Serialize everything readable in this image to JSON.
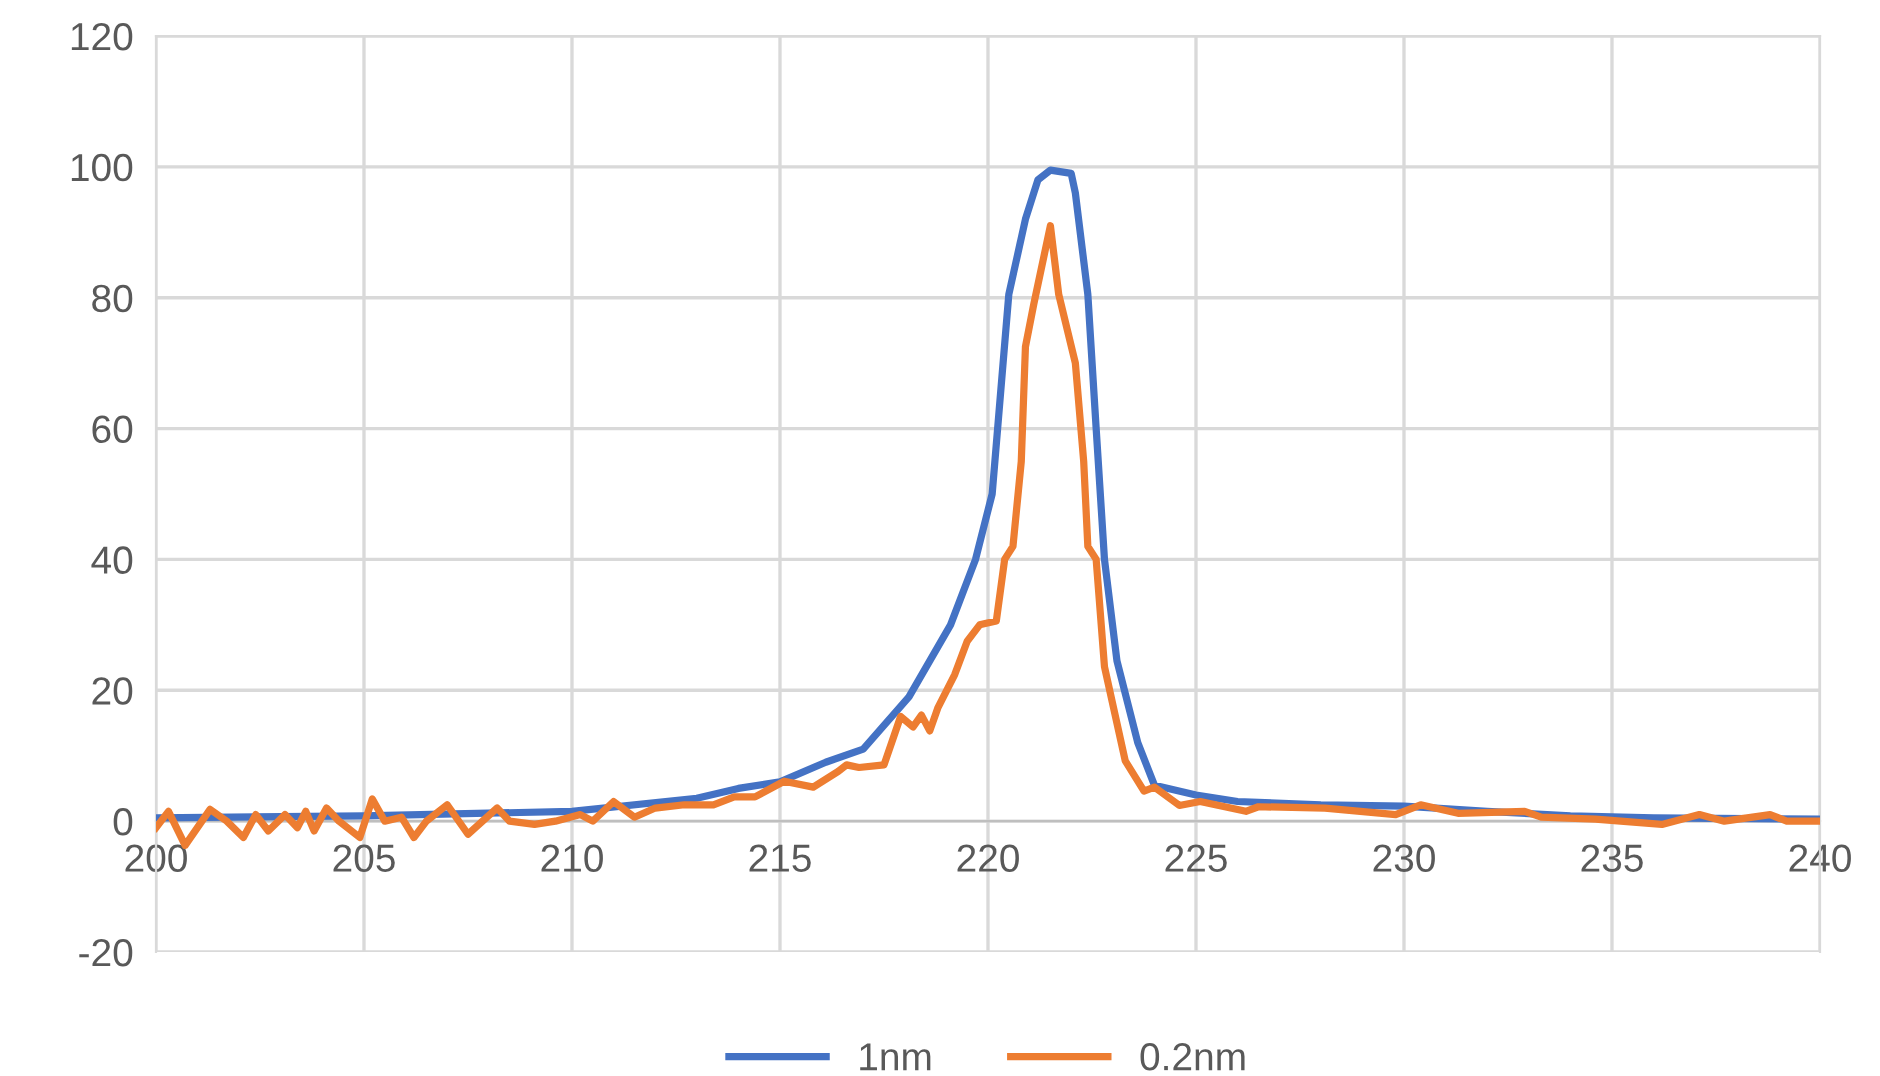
{
  "chart_data": {
    "type": "line",
    "xlim": [
      200,
      240
    ],
    "xticks": [
      200,
      205,
      210,
      215,
      220,
      225,
      230,
      235,
      240
    ],
    "ylim": [
      -20,
      120
    ],
    "yticks": [
      -20,
      0,
      20,
      40,
      60,
      80,
      100,
      120
    ],
    "grid": true,
    "legend": "bottom",
    "marker": "none",
    "line_style": "solid",
    "series": [
      {
        "name": "1nm",
        "color": "#4472c4",
        "x": [
          200,
          205,
          210,
          213,
          214,
          215,
          216.1,
          217,
          218.1,
          219.1,
          219.7,
          220.1,
          220.5,
          220.9,
          221.2,
          221.5,
          222.0,
          222.1,
          222.4,
          222.6,
          222.8,
          223.1,
          223.6,
          224.0,
          225,
          226,
          228,
          230,
          232,
          234,
          236,
          240
        ],
        "values": [
          0.5,
          0.8,
          1.5,
          3.5,
          5,
          6,
          9,
          11,
          19,
          30,
          40,
          50,
          80.5,
          92,
          98,
          99.5,
          99,
          96,
          80.5,
          60,
          40,
          24.5,
          12,
          5.5,
          4,
          3,
          2.5,
          2.3,
          1.5,
          0.8,
          0.5,
          0.3
        ]
      },
      {
        "name": "0.2nm",
        "color": "#ed7d31",
        "x": [
          200,
          200.3,
          200.7,
          201.3,
          201.7,
          202.1,
          202.4,
          202.7,
          203.1,
          203.4,
          203.6,
          203.8,
          204.1,
          204.4,
          204.9,
          205.2,
          205.5,
          205.9,
          206.2,
          206.5,
          207.0,
          207.5,
          208.2,
          208.5,
          209.1,
          209.6,
          210.2,
          210.5,
          211.0,
          211.5,
          212.0,
          212.7,
          213.4,
          213.9,
          214.4,
          215.1,
          215.8,
          216.4,
          216.6,
          216.9,
          217.5,
          217.9,
          218.2,
          218.4,
          218.6,
          218.8,
          219.2,
          219.5,
          219.8,
          220.2,
          220.4,
          220.6,
          220.8,
          220.9,
          221.1,
          221.5,
          221.7,
          222.1,
          222.3,
          222.4,
          222.6,
          222.8,
          223.3,
          223.75,
          224.0,
          224.6,
          225.1,
          226.2,
          226.5,
          228.1,
          229.8,
          230.4,
          231.3,
          232.9,
          233.3,
          234.6,
          236.2,
          237.1,
          237.7,
          238.8,
          239.2,
          240
        ],
        "values": [
          -1,
          1.5,
          -3.7,
          1.8,
          0,
          -2.5,
          1,
          -1.5,
          1,
          -1,
          1.5,
          -1.5,
          2,
          0,
          -2.5,
          3.4,
          0,
          0.6,
          -2.5,
          0,
          2.5,
          -2,
          2,
          0,
          -0.5,
          0,
          1,
          0,
          3,
          0.6,
          2,
          2.5,
          2.5,
          3.7,
          3.7,
          6.1,
          5.2,
          7.6,
          8.6,
          8.2,
          8.6,
          16,
          14.4,
          16.2,
          13.8,
          17.4,
          22.4,
          27.5,
          30,
          30.6,
          40,
          42,
          55,
          72.5,
          79,
          91,
          80.5,
          70,
          55,
          42,
          40,
          23.6,
          9.2,
          4.6,
          5.2,
          2.4,
          3,
          1.5,
          2.2,
          2,
          1,
          2.5,
          1.2,
          1.5,
          0.6,
          0.3,
          -0.5,
          1,
          0,
          1,
          0,
          0
        ]
      }
    ]
  }
}
